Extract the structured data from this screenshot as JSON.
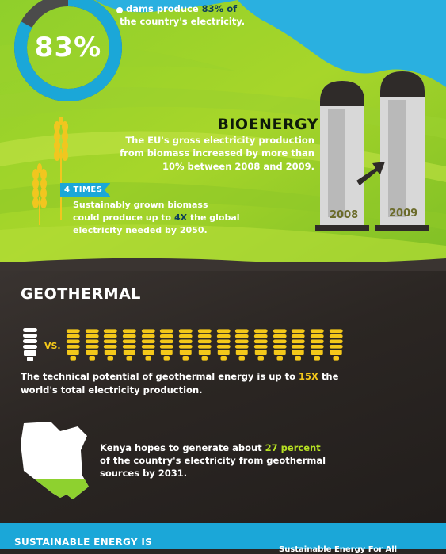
{
  "hydro": {
    "line1_pre": "dams produce ",
    "line1_highlight": "83% of",
    "line2": "the country's electricity.",
    "percent_label": "83%",
    "percent_value": 83
  },
  "bioenergy": {
    "title": "BIOENERGY",
    "line1": "The EU's gross electricity production",
    "line2": "from biomass increased by more than",
    "line3": "10% between 2008 and 2009.",
    "badge": "4 TIMES",
    "badge_line1": "Sustainably grown biomass",
    "badge_line2_pre": "could produce up to ",
    "badge_line2_highlight": "4X",
    "badge_line2_post": " the global",
    "badge_line3": "electricity needed by 2050.",
    "year_left": "2008",
    "year_right": "2009"
  },
  "geothermal": {
    "title": "GEOTHERMAL",
    "vs_label": "VS.",
    "bulb_count": 15,
    "line1_pre": "The technical potential of geothermal energy is up to ",
    "line1_highlight": "15X",
    "line1_post": " the",
    "line2": "world's total electricity production.",
    "kenya_line1_pre": "Kenya hopes to generate about ",
    "kenya_line1_highlight": "27 percent",
    "kenya_line2": "of the country's electricity from geothermal",
    "kenya_line3": "sources by 2031.",
    "kenya_share": 0.27
  },
  "footer": {
    "sustainable_label": "SUSTAINABLE ENERGY IS",
    "right_partial": "Sustainable Energy For All"
  },
  "colors": {
    "accent_blue": "#1ba7d8",
    "accent_green": "#b6e023",
    "accent_yellow": "#f4c81a",
    "dark_bg": "#2a2522"
  }
}
